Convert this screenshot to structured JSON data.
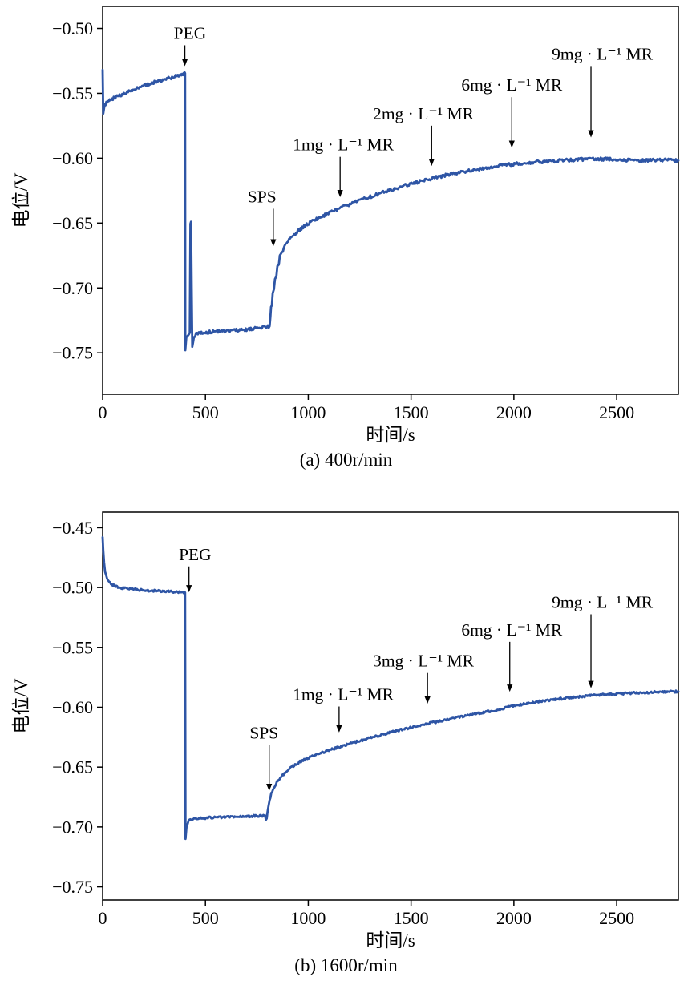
{
  "page": {
    "background": "#ffffff"
  },
  "chart_data": [
    {
      "type": "line",
      "caption": "(a) 400r/min",
      "xlabel": "时间/s",
      "ylabel": "电位/V",
      "xlim": [
        0,
        2800
      ],
      "ylim": [
        -0.782,
        -0.483
      ],
      "xticks": [
        0,
        500,
        1000,
        1500,
        2000,
        2500
      ],
      "yticks": [
        -0.5,
        -0.55,
        -0.6,
        -0.65,
        -0.7,
        -0.75
      ],
      "line_color": "#2e55a5",
      "noise": 0.0012,
      "series": [
        {
          "name": "potential-vs-time-400rpm",
          "points": [
            [
              0,
              -0.532
            ],
            [
              3,
              -0.566
            ],
            [
              10,
              -0.559
            ],
            [
              30,
              -0.5555
            ],
            [
              70,
              -0.5525
            ],
            [
              120,
              -0.549
            ],
            [
              180,
              -0.545
            ],
            [
              240,
              -0.542
            ],
            [
              300,
              -0.5395
            ],
            [
              350,
              -0.537
            ],
            [
              399,
              -0.5345
            ],
            [
              401,
              -0.5345
            ],
            [
              402,
              -0.748
            ],
            [
              407,
              -0.739
            ],
            [
              414,
              -0.736
            ],
            [
              424,
              -0.7345
            ],
            [
              427,
              -0.651
            ],
            [
              430,
              -0.649
            ],
            [
              433,
              -0.7
            ],
            [
              436,
              -0.7455
            ],
            [
              444,
              -0.738
            ],
            [
              455,
              -0.735
            ],
            [
              480,
              -0.7345
            ],
            [
              520,
              -0.734
            ],
            [
              570,
              -0.7335
            ],
            [
              630,
              -0.733
            ],
            [
              700,
              -0.732
            ],
            [
              770,
              -0.7305
            ],
            [
              812,
              -0.7295
            ],
            [
              816,
              -0.722
            ],
            [
              819,
              -0.7145
            ],
            [
              823,
              -0.7135
            ],
            [
              827,
              -0.703
            ],
            [
              833,
              -0.701
            ],
            [
              838,
              -0.6925
            ],
            [
              845,
              -0.691
            ],
            [
              850,
              -0.6835
            ],
            [
              857,
              -0.682
            ],
            [
              862,
              -0.675
            ],
            [
              872,
              -0.6725
            ],
            [
              890,
              -0.6665
            ],
            [
              915,
              -0.6615
            ],
            [
              945,
              -0.657
            ],
            [
              980,
              -0.6525
            ],
            [
              1020,
              -0.6485
            ],
            [
              1065,
              -0.645
            ],
            [
              1110,
              -0.6415
            ],
            [
              1160,
              -0.638
            ],
            [
              1210,
              -0.635
            ],
            [
              1260,
              -0.632
            ],
            [
              1310,
              -0.6292
            ],
            [
              1360,
              -0.6265
            ],
            [
              1410,
              -0.624
            ],
            [
              1460,
              -0.6215
            ],
            [
              1510,
              -0.6193
            ],
            [
              1560,
              -0.6172
            ],
            [
              1610,
              -0.6152
            ],
            [
              1660,
              -0.6135
            ],
            [
              1710,
              -0.6118
            ],
            [
              1760,
              -0.6102
            ],
            [
              1810,
              -0.6088
            ],
            [
              1860,
              -0.6075
            ],
            [
              1910,
              -0.6062
            ],
            [
              1960,
              -0.6052
            ],
            [
              2010,
              -0.6043
            ],
            [
              2060,
              -0.6036
            ],
            [
              2110,
              -0.603
            ],
            [
              2160,
              -0.6025
            ],
            [
              2210,
              -0.602
            ],
            [
              2260,
              -0.6016
            ],
            [
              2310,
              -0.6012
            ],
            [
              2360,
              -0.6008
            ],
            [
              2410,
              -0.6006
            ],
            [
              2460,
              -0.6008
            ],
            [
              2510,
              -0.6012
            ],
            [
              2560,
              -0.6016
            ],
            [
              2610,
              -0.6018
            ],
            [
              2660,
              -0.6016
            ],
            [
              2710,
              -0.6014
            ],
            [
              2760,
              -0.6016
            ],
            [
              2800,
              -0.6018
            ]
          ]
        }
      ],
      "annotations": [
        {
          "label": "PEG",
          "tx": 425,
          "ty": -0.508,
          "ax": 400,
          "ay": -0.529
        },
        {
          "label": "SPS",
          "tx": 775,
          "ty": -0.634,
          "ax": 830,
          "ay": -0.668
        },
        {
          "label": "1mg · L⁻¹ MR",
          "tx": 1170,
          "ty": -0.594,
          "ax": 1155,
          "ay": -0.63
        },
        {
          "label": "2mg · L⁻¹ MR",
          "tx": 1560,
          "ty": -0.57,
          "ax": 1600,
          "ay": -0.606
        },
        {
          "label": "6mg · L⁻¹ MR",
          "tx": 1990,
          "ty": -0.548,
          "ax": 1990,
          "ay": -0.592
        },
        {
          "label": "9mg · L⁻¹ MR",
          "tx": 2430,
          "ty": -0.524,
          "ax": 2375,
          "ay": -0.584
        }
      ]
    },
    {
      "type": "line",
      "caption": "(b) 1600r/min",
      "xlabel": "时间/s",
      "ylabel": "电位/V",
      "xlim": [
        0,
        2800
      ],
      "ylim": [
        -0.761,
        -0.437
      ],
      "xticks": [
        0,
        500,
        1000,
        1500,
        2000,
        2500
      ],
      "yticks": [
        -0.45,
        -0.5,
        -0.55,
        -0.6,
        -0.65,
        -0.7,
        -0.75
      ],
      "line_color": "#2e55a5",
      "noise": 0.0009,
      "series": [
        {
          "name": "potential-vs-time-1600rpm",
          "points": [
            [
              0,
              -0.458
            ],
            [
              3,
              -0.469
            ],
            [
              7,
              -0.479
            ],
            [
              12,
              -0.4865
            ],
            [
              18,
              -0.491
            ],
            [
              26,
              -0.494
            ],
            [
              36,
              -0.4965
            ],
            [
              50,
              -0.498
            ],
            [
              70,
              -0.4995
            ],
            [
              100,
              -0.5005
            ],
            [
              150,
              -0.5015
            ],
            [
              220,
              -0.5025
            ],
            [
              300,
              -0.5032
            ],
            [
              360,
              -0.5038
            ],
            [
              399,
              -0.5042
            ],
            [
              401,
              -0.5042
            ],
            [
              403,
              -0.71
            ],
            [
              408,
              -0.7005
            ],
            [
              414,
              -0.6965
            ],
            [
              422,
              -0.6945
            ],
            [
              438,
              -0.6935
            ],
            [
              470,
              -0.6928
            ],
            [
              520,
              -0.6922
            ],
            [
              590,
              -0.6917
            ],
            [
              670,
              -0.6912
            ],
            [
              740,
              -0.6908
            ],
            [
              790,
              -0.6905
            ],
            [
              794,
              -0.6945
            ],
            [
              798,
              -0.693
            ],
            [
              801,
              -0.6885
            ],
            [
              806,
              -0.6825
            ],
            [
              812,
              -0.6775
            ],
            [
              820,
              -0.6725
            ],
            [
              832,
              -0.6675
            ],
            [
              848,
              -0.6625
            ],
            [
              868,
              -0.658
            ],
            [
              892,
              -0.6537
            ],
            [
              920,
              -0.6497
            ],
            [
              952,
              -0.6462
            ],
            [
              988,
              -0.6432
            ],
            [
              1028,
              -0.6403
            ],
            [
              1072,
              -0.6375
            ],
            [
              1120,
              -0.6348
            ],
            [
              1172,
              -0.632
            ],
            [
              1228,
              -0.6292
            ],
            [
              1288,
              -0.6262
            ],
            [
              1352,
              -0.6232
            ],
            [
              1420,
              -0.6202
            ],
            [
              1492,
              -0.6172
            ],
            [
              1568,
              -0.6142
            ],
            [
              1648,
              -0.6112
            ],
            [
              1732,
              -0.6082
            ],
            [
              1820,
              -0.6052
            ],
            [
              1900,
              -0.6028
            ],
            [
              1980,
              -0.5995
            ],
            [
              2060,
              -0.597
            ],
            [
              2140,
              -0.5948
            ],
            [
              2220,
              -0.593
            ],
            [
              2300,
              -0.5915
            ],
            [
              2380,
              -0.5902
            ],
            [
              2460,
              -0.5892
            ],
            [
              2540,
              -0.5884
            ],
            [
              2620,
              -0.5878
            ],
            [
              2700,
              -0.5873
            ],
            [
              2800,
              -0.5868
            ]
          ]
        }
      ],
      "annotations": [
        {
          "label": "PEG",
          "tx": 450,
          "ty": -0.477,
          "ax": 420,
          "ay": -0.504
        },
        {
          "label": "SPS",
          "tx": 785,
          "ty": -0.626,
          "ax": 810,
          "ay": -0.67
        },
        {
          "label": "1mg · L⁻¹ MR",
          "tx": 1170,
          "ty": -0.594,
          "ax": 1150,
          "ay": -0.621
        },
        {
          "label": "3mg · L⁻¹ MR",
          "tx": 1560,
          "ty": -0.566,
          "ax": 1580,
          "ay": -0.597
        },
        {
          "label": "6mg · L⁻¹ MR",
          "tx": 1990,
          "ty": -0.54,
          "ax": 1980,
          "ay": -0.587
        },
        {
          "label": "9mg · L⁻¹ MR",
          "tx": 2430,
          "ty": -0.517,
          "ax": 2375,
          "ay": -0.584
        }
      ]
    }
  ]
}
